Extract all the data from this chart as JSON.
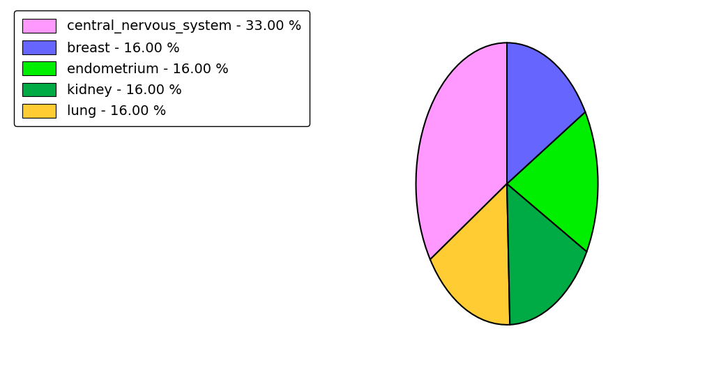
{
  "labels": [
    "central_nervous_system",
    "lung",
    "kidney",
    "endometrium",
    "breast"
  ],
  "values": [
    33.0,
    16.0,
    16.0,
    16.0,
    16.0
  ],
  "colors": [
    "#ff99ff",
    "#ffcc33",
    "#00aa44",
    "#00ee00",
    "#6666ff"
  ],
  "legend_labels": [
    "central_nervous_system - 33.00 %",
    "breast - 16.00 %",
    "endometrium - 16.00 %",
    "kidney - 16.00 %",
    "lung - 16.00 %"
  ],
  "legend_colors": [
    "#ff99ff",
    "#6666ff",
    "#00ee00",
    "#00aa44",
    "#ffcc33"
  ],
  "background_color": "#ffffff",
  "startangle": 90,
  "legend_fontsize": 14,
  "ellipse_xscale": 1.6,
  "ellipse_yscale": 1.0
}
